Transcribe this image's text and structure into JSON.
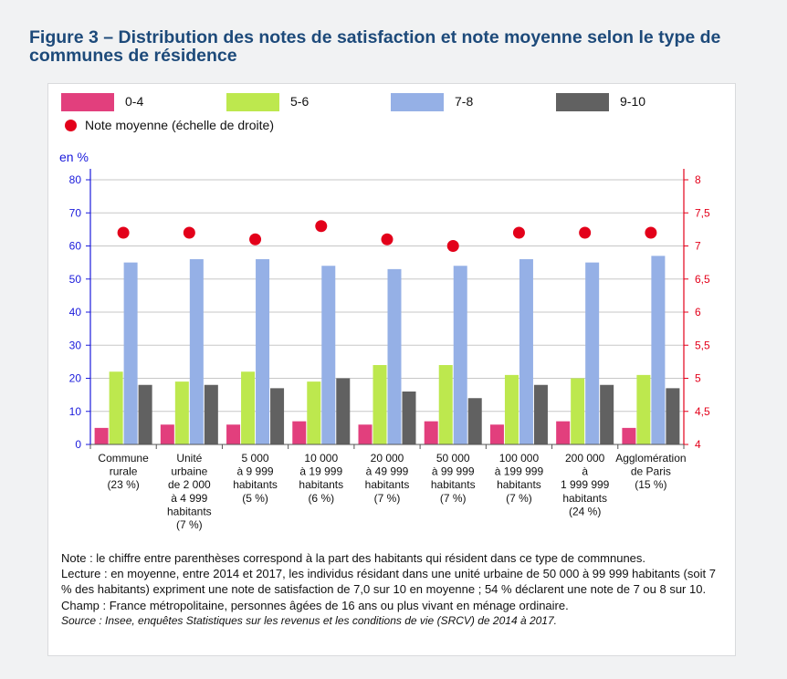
{
  "figure": {
    "title": "Figure 3 – Distribution des notes de satisfaction et note moyenne selon le type de communes de résidence"
  },
  "legend": {
    "items": [
      {
        "label": "0-4",
        "color": "#e23f7d"
      },
      {
        "label": "5-6",
        "color": "#bde84e"
      },
      {
        "label": "7-8",
        "color": "#95b0e6"
      },
      {
        "label": "9-10",
        "color": "#616161"
      }
    ],
    "dot_label": "Note moyenne (échelle de droite)",
    "dot_color": "#e3001a"
  },
  "chart_data": {
    "type": "bar",
    "categories": [
      [
        "Commune",
        "rurale",
        "(23 %)"
      ],
      [
        "Unité",
        "urbaine",
        "de 2 000",
        "à 4 999",
        "habitants",
        "(7 %)"
      ],
      [
        "5 000",
        "à 9 999",
        "habitants",
        "(5 %)"
      ],
      [
        "10 000",
        "à 19 999",
        "habitants",
        "(6 %)"
      ],
      [
        "20 000",
        "à 49 999",
        "habitants",
        "(7 %)"
      ],
      [
        "50 000",
        "à 99 999",
        "habitants",
        "(7 %)"
      ],
      [
        "100 000",
        "à 199 999",
        "habitants",
        "(7 %)"
      ],
      [
        "200 000",
        "à",
        "1 999 999",
        "habitants",
        "(24 %)"
      ],
      [
        "Agglomération",
        "de Paris",
        "(15 %)"
      ]
    ],
    "series": [
      {
        "name": "0-4",
        "color": "#e23f7d",
        "values": [
          5,
          6,
          6,
          7,
          6,
          7,
          6,
          7,
          5
        ]
      },
      {
        "name": "5-6",
        "color": "#bde84e",
        "values": [
          22,
          19,
          22,
          19,
          24,
          24,
          21,
          20,
          21
        ]
      },
      {
        "name": "7-8",
        "color": "#95b0e6",
        "values": [
          55,
          56,
          56,
          54,
          53,
          54,
          56,
          55,
          57
        ]
      },
      {
        "name": "9-10",
        "color": "#616161",
        "values": [
          18,
          18,
          17,
          20,
          16,
          14,
          18,
          18,
          17
        ]
      }
    ],
    "mean_series": {
      "name": "Note moyenne (échelle de droite)",
      "color": "#e3001a",
      "values": [
        7.2,
        7.2,
        7.1,
        7.3,
        7.1,
        7.0,
        7.2,
        7.2,
        7.2
      ]
    },
    "ylabel": "en %",
    "ylim": [
      0,
      80
    ],
    "yticks": [
      "0",
      "10",
      "20",
      "30",
      "40",
      "50",
      "60",
      "70",
      "80"
    ],
    "y2lim": [
      4,
      8
    ],
    "y2ticks": [
      "4",
      "4,5",
      "5",
      "5,5",
      "6",
      "6,5",
      "7",
      "7,5",
      "8"
    ],
    "grid": true,
    "legend_position": "top",
    "left_axis_color": "#1a1adb",
    "right_axis_color": "#e3001a"
  },
  "notes": {
    "note": "Note : le chiffre entre parenthèses correspond à la part des habitants qui résident dans ce type de commnunes.",
    "lecture": "Lecture : en moyenne, entre 2014 et 2017, les individus résidant dans une unité urbaine de 50 000 à 99 999 habitants (soit 7 % des habitants) expriment une note de satisfaction de 7,0 sur 10 en moyenne ; 54 % déclarent une note de 7 ou 8 sur 10.",
    "champ": "Champ : France métropolitaine, personnes âgées de 16 ans ou plus vivant en ménage ordinaire.",
    "source": "Source : Insee, enquêtes Statistiques sur les revenus et les conditions de vie (SRCV) de 2014 à 2017."
  }
}
